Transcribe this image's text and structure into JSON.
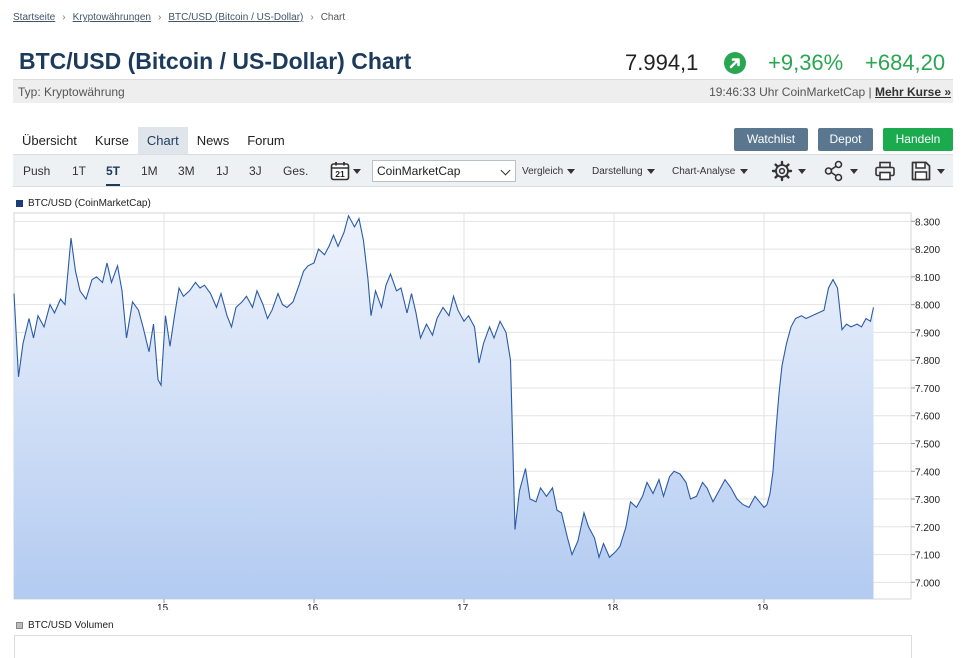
{
  "breadcrumb": [
    "Startseite",
    "Kryptowährungen",
    "BTC/USD (Bitcoin / US-Dollar)",
    "Chart"
  ],
  "header": {
    "title": "BTC/USD (Bitcoin / US-Dollar) Chart",
    "price": "7.994,1",
    "change_pct": "+9,36%",
    "change_abs": "+684,20"
  },
  "info": {
    "type": "Typ: Kryptowährung",
    "meta": "19:46:33 Uhr CoinMarketCap |",
    "more": "Mehr Kurse »"
  },
  "tabs": [
    "Übersicht",
    "Kurse",
    "Chart",
    "News",
    "Forum"
  ],
  "active_tab": "Chart",
  "actions": {
    "watchlist": "Watchlist",
    "depot": "Depot",
    "trade": "Handeln"
  },
  "toolbar": {
    "ranges": [
      "Push",
      "1T",
      "5T",
      "1M",
      "3M",
      "1J",
      "3J",
      "Ges."
    ],
    "active_range": "5T",
    "calendar_day": "21",
    "source": "CoinMarketCap",
    "menus": [
      "Vergleich",
      "Darstellung",
      "Chart-Analyse"
    ],
    "icons": [
      "calendar-icon",
      "gear-icon",
      "share-icon",
      "print-icon",
      "save-icon"
    ]
  },
  "colors": {
    "line": "#2a5ba6",
    "fill_top": "#eef3fc",
    "fill_bottom": "#b3cbf1",
    "positive": "#2aa653",
    "title": "#1c3b5c"
  },
  "chart_data": {
    "type": "area",
    "title": "",
    "legend": "BTC/USD (CoinMarketCap)",
    "legend_placement": "top-left",
    "x_labels": [
      "15.",
      "16.",
      "17.",
      "18.",
      "19."
    ],
    "x_label_positions": [
      1,
      2,
      3,
      4,
      5
    ],
    "xlim": [
      0,
      5.98
    ],
    "y_ticks": [
      "8.300",
      "8.200",
      "8.100",
      "8.000",
      "7.900",
      "7.800",
      "7.700",
      "7.600",
      "7.500",
      "7.400",
      "7.300",
      "7.200",
      "7.100",
      "7.000"
    ],
    "y_tick_values": [
      8300,
      8200,
      8100,
      8000,
      7900,
      7800,
      7700,
      7600,
      7500,
      7400,
      7300,
      7200,
      7100,
      7000
    ],
    "ylim": [
      6940,
      8330
    ],
    "grid": true,
    "y_axis_position": "right",
    "series": [
      {
        "name": "BTC/USD (CoinMarketCap)",
        "points": [
          [
            0.0,
            8040
          ],
          [
            0.03,
            7740
          ],
          [
            0.06,
            7860
          ],
          [
            0.1,
            7950
          ],
          [
            0.13,
            7880
          ],
          [
            0.16,
            7960
          ],
          [
            0.2,
            7920
          ],
          [
            0.24,
            8000
          ],
          [
            0.27,
            7970
          ],
          [
            0.31,
            8020
          ],
          [
            0.34,
            8000
          ],
          [
            0.38,
            8240
          ],
          [
            0.41,
            8120
          ],
          [
            0.44,
            8050
          ],
          [
            0.48,
            8020
          ],
          [
            0.52,
            8090
          ],
          [
            0.55,
            8100
          ],
          [
            0.59,
            8080
          ],
          [
            0.62,
            8150
          ],
          [
            0.65,
            8080
          ],
          [
            0.69,
            8140
          ],
          [
            0.72,
            8050
          ],
          [
            0.75,
            7880
          ],
          [
            0.79,
            8010
          ],
          [
            0.83,
            7980
          ],
          [
            0.86,
            7920
          ],
          [
            0.9,
            7830
          ],
          [
            0.93,
            7930
          ],
          [
            0.96,
            7730
          ],
          [
            0.98,
            7710
          ],
          [
            1.01,
            7960
          ],
          [
            1.04,
            7850
          ],
          [
            1.07,
            7960
          ],
          [
            1.1,
            8060
          ],
          [
            1.13,
            8030
          ],
          [
            1.17,
            8050
          ],
          [
            1.21,
            8080
          ],
          [
            1.24,
            8060
          ],
          [
            1.27,
            8070
          ],
          [
            1.31,
            8040
          ],
          [
            1.35,
            7990
          ],
          [
            1.38,
            8040
          ],
          [
            1.42,
            7960
          ],
          [
            1.45,
            7920
          ],
          [
            1.48,
            7990
          ],
          [
            1.52,
            8010
          ],
          [
            1.55,
            8030
          ],
          [
            1.59,
            7990
          ],
          [
            1.62,
            8050
          ],
          [
            1.66,
            8000
          ],
          [
            1.69,
            7950
          ],
          [
            1.72,
            7980
          ],
          [
            1.76,
            8040
          ],
          [
            1.79,
            8000
          ],
          [
            1.82,
            7990
          ],
          [
            1.86,
            8010
          ],
          [
            1.9,
            8070
          ],
          [
            1.93,
            8120
          ],
          [
            1.96,
            8140
          ],
          [
            2.0,
            8150
          ],
          [
            2.03,
            8200
          ],
          [
            2.07,
            8180
          ],
          [
            2.1,
            8210
          ],
          [
            2.13,
            8250
          ],
          [
            2.16,
            8210
          ],
          [
            2.2,
            8260
          ],
          [
            2.23,
            8320
          ],
          [
            2.27,
            8280
          ],
          [
            2.3,
            8310
          ],
          [
            2.33,
            8230
          ],
          [
            2.36,
            8090
          ],
          [
            2.38,
            7960
          ],
          [
            2.41,
            8050
          ],
          [
            2.45,
            7990
          ],
          [
            2.48,
            8070
          ],
          [
            2.51,
            8110
          ],
          [
            2.55,
            8050
          ],
          [
            2.58,
            8060
          ],
          [
            2.62,
            7970
          ],
          [
            2.65,
            8040
          ],
          [
            2.68,
            7970
          ],
          [
            2.71,
            7880
          ],
          [
            2.75,
            7930
          ],
          [
            2.79,
            7890
          ],
          [
            2.82,
            7950
          ],
          [
            2.86,
            7990
          ],
          [
            2.9,
            7960
          ],
          [
            2.93,
            8030
          ],
          [
            2.96,
            7980
          ],
          [
            3.0,
            7940
          ],
          [
            3.03,
            7960
          ],
          [
            3.07,
            7920
          ],
          [
            3.1,
            7790
          ],
          [
            3.13,
            7860
          ],
          [
            3.17,
            7920
          ],
          [
            3.2,
            7880
          ],
          [
            3.24,
            7940
          ],
          [
            3.28,
            7900
          ],
          [
            3.31,
            7800
          ],
          [
            3.34,
            7190
          ],
          [
            3.37,
            7330
          ],
          [
            3.41,
            7410
          ],
          [
            3.44,
            7300
          ],
          [
            3.48,
            7290
          ],
          [
            3.51,
            7340
          ],
          [
            3.55,
            7310
          ],
          [
            3.59,
            7340
          ],
          [
            3.62,
            7260
          ],
          [
            3.65,
            7250
          ],
          [
            3.69,
            7160
          ],
          [
            3.72,
            7100
          ],
          [
            3.76,
            7150
          ],
          [
            3.8,
            7250
          ],
          [
            3.83,
            7200
          ],
          [
            3.87,
            7160
          ],
          [
            3.9,
            7090
          ],
          [
            3.93,
            7140
          ],
          [
            3.97,
            7090
          ],
          [
            4.01,
            7110
          ],
          [
            4.04,
            7130
          ],
          [
            4.08,
            7200
          ],
          [
            4.11,
            7290
          ],
          [
            4.15,
            7270
          ],
          [
            4.19,
            7310
          ],
          [
            4.22,
            7360
          ],
          [
            4.26,
            7320
          ],
          [
            4.3,
            7370
          ],
          [
            4.33,
            7310
          ],
          [
            4.37,
            7380
          ],
          [
            4.4,
            7400
          ],
          [
            4.44,
            7390
          ],
          [
            4.48,
            7360
          ],
          [
            4.51,
            7300
          ],
          [
            4.55,
            7310
          ],
          [
            4.59,
            7360
          ],
          [
            4.62,
            7340
          ],
          [
            4.66,
            7290
          ],
          [
            4.7,
            7330
          ],
          [
            4.74,
            7370
          ],
          [
            4.78,
            7340
          ],
          [
            4.82,
            7300
          ],
          [
            4.86,
            7280
          ],
          [
            4.9,
            7270
          ],
          [
            4.94,
            7310
          ],
          [
            4.97,
            7290
          ],
          [
            5.0,
            7270
          ],
          [
            5.02,
            7280
          ],
          [
            5.04,
            7320
          ],
          [
            5.06,
            7400
          ],
          [
            5.08,
            7550
          ],
          [
            5.1,
            7680
          ],
          [
            5.12,
            7780
          ],
          [
            5.15,
            7860
          ],
          [
            5.18,
            7920
          ],
          [
            5.21,
            7950
          ],
          [
            5.25,
            7960
          ],
          [
            5.28,
            7950
          ],
          [
            5.32,
            7960
          ],
          [
            5.36,
            7970
          ],
          [
            5.4,
            7980
          ],
          [
            5.43,
            8060
          ],
          [
            5.46,
            8090
          ],
          [
            5.49,
            8060
          ],
          [
            5.52,
            7910
          ],
          [
            5.55,
            7930
          ],
          [
            5.58,
            7920
          ],
          [
            5.62,
            7930
          ],
          [
            5.65,
            7920
          ],
          [
            5.68,
            7950
          ],
          [
            5.71,
            7940
          ],
          [
            5.73,
            7990
          ]
        ]
      }
    ]
  },
  "volume": {
    "legend": "BTC/USD Volumen"
  }
}
